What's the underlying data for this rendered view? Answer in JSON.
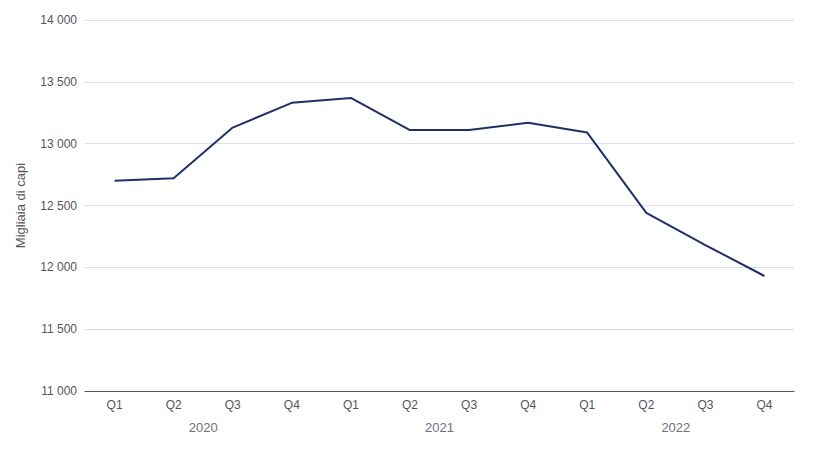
{
  "chart_data": {
    "type": "line",
    "categories": [
      "Q1",
      "Q2",
      "Q3",
      "Q4",
      "Q1",
      "Q2",
      "Q3",
      "Q4",
      "Q1",
      "Q2",
      "Q3",
      "Q4"
    ],
    "values": [
      12700,
      12720,
      13130,
      13330,
      13370,
      13110,
      13110,
      13170,
      13090,
      12440,
      12180,
      11930
    ],
    "color": "#1f3068",
    "ylabel": "Migliaia di capi",
    "ylim": [
      11000,
      14000
    ],
    "yticks": [
      {
        "value": 11000,
        "label": "11 000"
      },
      {
        "value": 11500,
        "label": "11 500"
      },
      {
        "value": 12000,
        "label": "12 000"
      },
      {
        "value": 12500,
        "label": "12 500"
      },
      {
        "value": 13000,
        "label": "13 000"
      },
      {
        "value": 13500,
        "label": "13 500"
      },
      {
        "value": 14000,
        "label": "14 000"
      }
    ],
    "grid": true,
    "annotations": [
      {
        "text": "2020",
        "x": 1.5
      },
      {
        "text": "2021",
        "x": 5.5
      },
      {
        "text": "2022",
        "x": 9.5
      }
    ]
  }
}
